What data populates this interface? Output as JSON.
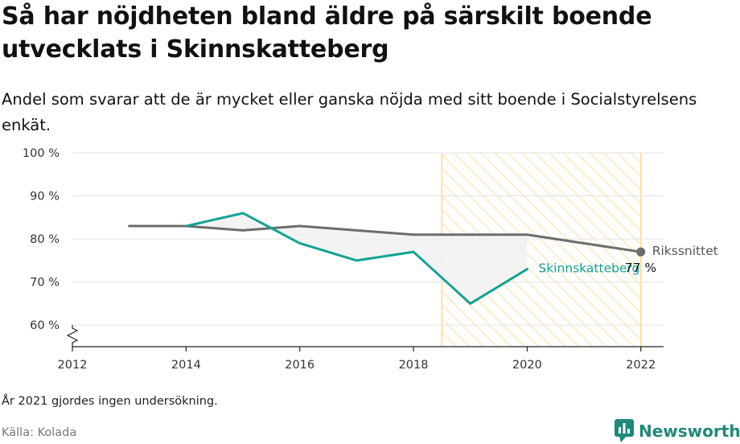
{
  "header": {
    "title": "Så har nöjdheten bland äldre på särskilt boende utvecklats i Skinnskatteberg",
    "subtitle": "Andel som svarar att de är mycket eller ganska nöjda med sitt boende i Socialstyrelsens enkät."
  },
  "footer": {
    "note": "År 2021 gjordes ingen undersökning.",
    "source": "Källa: Kolada",
    "brand": "Newsworthy"
  },
  "colors": {
    "local": "#12a393",
    "national": "#6d6d6d",
    "highlight": "#fcd88a",
    "fill": "#f1f1f1",
    "grid": "#e2e2e2"
  },
  "chart_data": {
    "type": "line",
    "x_ticks": [
      2012,
      2014,
      2016,
      2018,
      2020,
      2022
    ],
    "y_ticks": [
      60,
      70,
      80,
      90,
      100
    ],
    "y_tick_labels": [
      "60 %",
      "70 %",
      "80 %",
      "90 %",
      "100 %"
    ],
    "xlim": [
      2012,
      2022.4
    ],
    "ylim": [
      55,
      100
    ],
    "highlight_range": [
      2018.5,
      2022
    ],
    "series": [
      {
        "name": "Rikssnittet",
        "color": "#6d6d6d",
        "x": [
          2013,
          2014,
          2015,
          2016,
          2017,
          2018,
          2019,
          2020,
          2022
        ],
        "y": [
          83,
          83,
          82,
          83,
          82,
          81,
          81,
          81,
          77
        ],
        "end_label": "Rikssnittet",
        "end_value_label": "77 %"
      },
      {
        "name": "Skinnskatteberg",
        "color": "#12a393",
        "x": [
          2014,
          2015,
          2016,
          2017,
          2018,
          2019,
          2020
        ],
        "y": [
          83,
          86,
          79,
          75,
          77,
          65,
          73
        ],
        "end_label": "Skinnskatteberg"
      }
    ]
  }
}
